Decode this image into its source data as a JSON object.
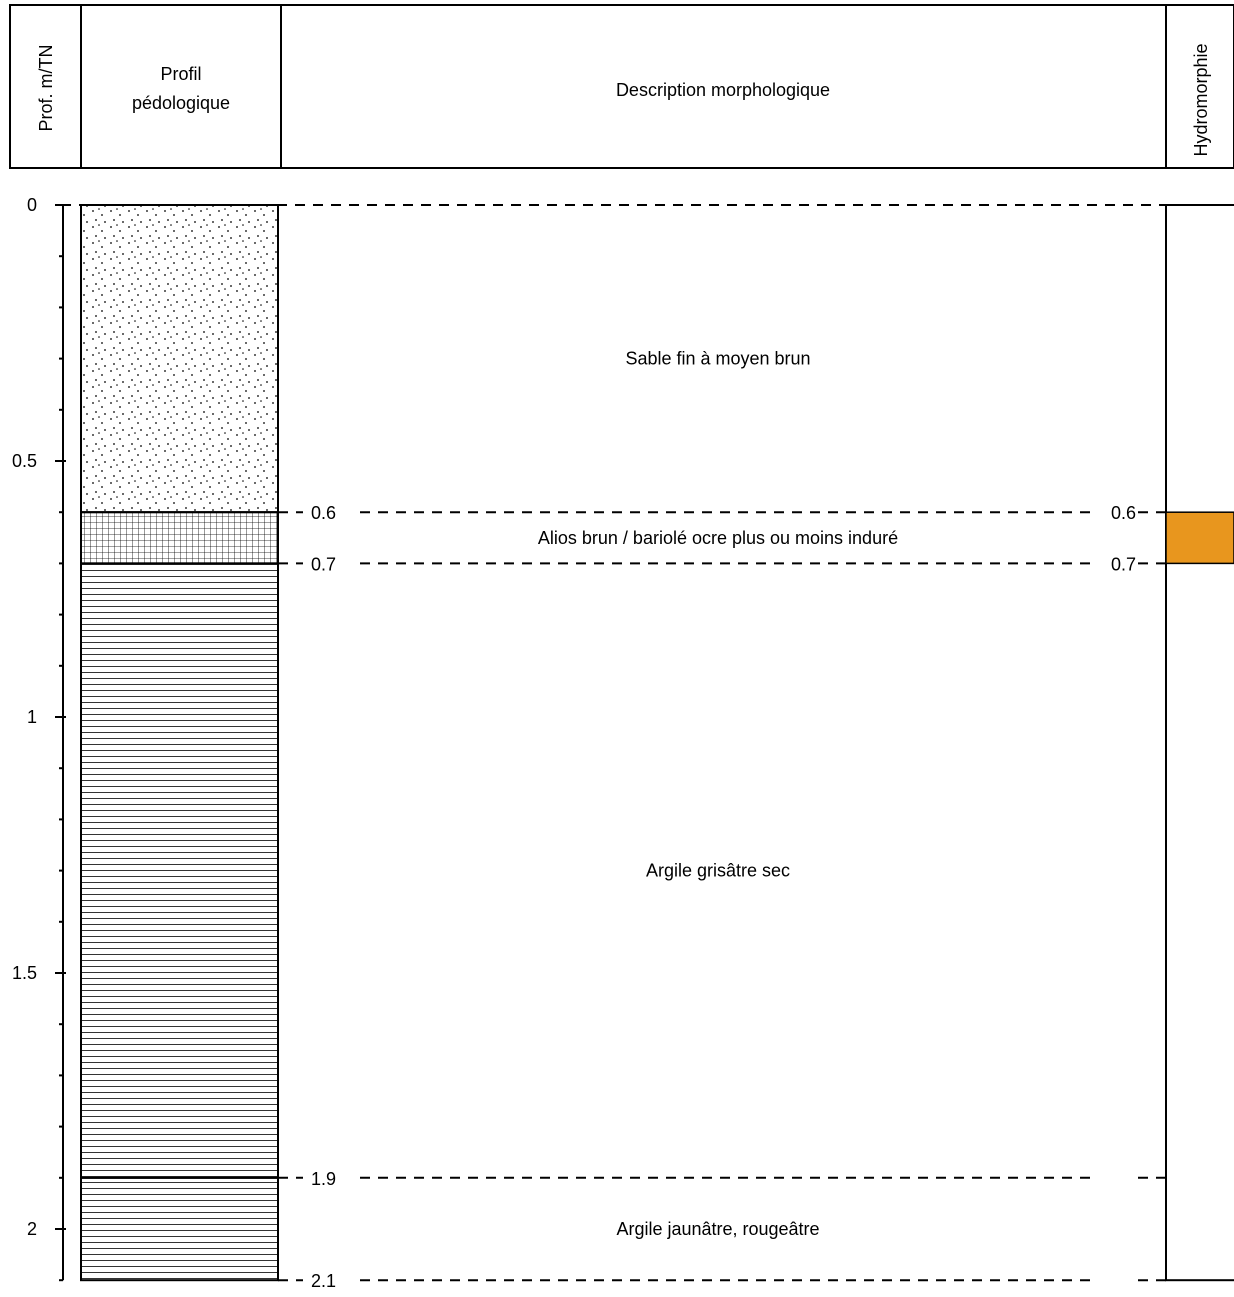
{
  "header": {
    "depth_label": "Prof. m/TN",
    "profile_label_line1": "Profil",
    "profile_label_line2": "pédologique",
    "description_label": "Description morphologique",
    "hydromorphy_label": "Hydromorphie"
  },
  "depth_axis": {
    "min": 0,
    "max": 2.1,
    "major_ticks": [
      "0",
      "0.5",
      "1",
      "1.5",
      "2"
    ],
    "minor_step": 0.1
  },
  "layers": [
    {
      "top": 0,
      "bottom": 0.6,
      "pattern": "dots",
      "description": "Sable fin à moyen brun"
    },
    {
      "top": 0.6,
      "bottom": 0.7,
      "pattern": "grid",
      "description": "Alios brun / bariolé ocre plus ou moins induré"
    },
    {
      "top": 0.7,
      "bottom": 1.9,
      "pattern": "horizontal",
      "description": "Argile grisâtre sec"
    },
    {
      "top": 1.9,
      "bottom": 2.1,
      "pattern": "horizontal",
      "description": "Argile jaunâtre, rougeâtre"
    }
  ],
  "boundaries": [
    {
      "depth": 0,
      "label": ""
    },
    {
      "depth": 0.6,
      "label": "0.6"
    },
    {
      "depth": 0.7,
      "label": "0.7"
    },
    {
      "depth": 1.9,
      "label": "1.9"
    },
    {
      "depth": 2.1,
      "label": "2.1"
    }
  ],
  "hydromorphy": {
    "zones": [
      {
        "top": 0.6,
        "bottom": 0.7
      }
    ],
    "labels": [
      "0.6",
      "0.7"
    ],
    "color": "#E8961E"
  }
}
